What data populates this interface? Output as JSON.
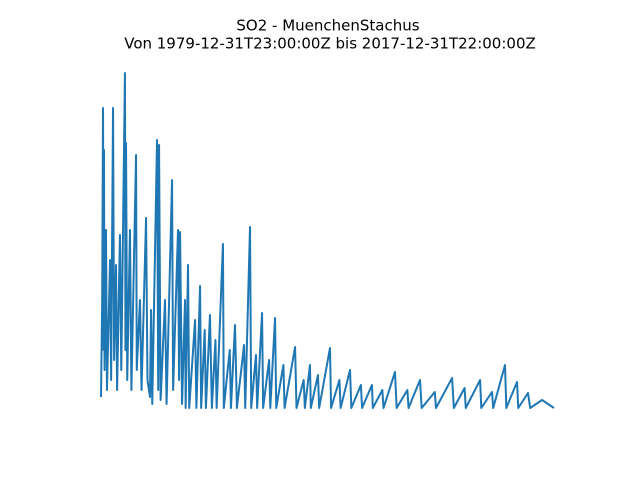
{
  "chart_data": {
    "type": "line",
    "title": "SO2 - MuenchenStachus",
    "subtitle": "Von 1979-12-31T23:00:00Z bis 2017-12-31T22:00:00Z",
    "x": [
      1980.0,
      1980.1,
      1980.17,
      1980.22,
      1980.25,
      1980.3,
      1980.42,
      1980.5,
      1980.76,
      1980.85,
      1981.01,
      1981.1,
      1981.26,
      1981.35,
      1981.59,
      1981.7,
      1982.01,
      1982.05,
      1982.1,
      1982.2,
      1982.43,
      1982.55,
      1982.94,
      1983.0,
      1983.27,
      1983.4,
      1983.78,
      1983.9,
      1984.11,
      1984.2,
      1984.3,
      1984.7,
      1984.8,
      1984.87,
      1985.0,
      1985.37,
      1985.5,
      1985.96,
      1986.05,
      1986.46,
      1986.55,
      1986.63,
      1986.8,
      1987.05,
      1987.1,
      1987.3,
      1987.4,
      1987.89,
      1988.0,
      1988.31,
      1988.4,
      1988.7,
      1988.8,
      1989.14,
      1989.3,
      1989.6,
      1989.7,
      1990.23,
      1990.3,
      1990.8,
      1990.9,
      1991.24,
      1991.4,
      1992.0,
      1992.1,
      1992.5,
      1992.6,
      1993.0,
      1993.1,
      1993.51,
      1993.6,
      1994.1,
      1994.2,
      1994.6,
      1994.7,
      1995.3,
      1995.4,
      1996.28,
      1996.4,
      1997.0,
      1997.1,
      1997.53,
      1997.6,
      1998.2,
      1998.3,
      1999.21,
      1999.3,
      2000.0,
      2000.1,
      2000.89,
      2001.0,
      2001.8,
      2001.9,
      2002.73,
      2002.8,
      2003.6,
      2003.7,
      2004.66,
      2004.8,
      2005.7,
      2005.8,
      2006.76,
      2006.9,
      2008.0,
      2008.1,
      2009.45,
      2009.6,
      2010.5,
      2010.6,
      2011.8,
      2011.9,
      2012.8,
      2012.9,
      2013.89,
      2014.0,
      2014.9,
      2015.0,
      2015.82,
      2016.0,
      2017.0,
      2018.0
    ],
    "series": [
      {
        "color": "#1f77b4",
        "values": [
          13,
          110,
          302,
          60,
          260,
          40,
          180,
          20,
          150,
          30,
          302,
          50,
          145,
          20,
          175,
          40,
          337,
          60,
          267,
          30,
          180,
          20,
          255,
          40,
          110,
          20,
          192,
          30,
          13,
          100,
          6,
          270,
          20,
          265,
          10,
          110,
          6,
          230,
          20,
          180,
          30,
          178,
          6,
          110,
          2,
          145,
          2,
          90,
          2,
          124,
          2,
          80,
          2,
          95,
          2,
          70,
          2,
          166,
          2,
          60,
          2,
          85,
          2,
          65,
          2,
          183,
          2,
          55,
          2,
          97,
          2,
          50,
          2,
          92,
          2,
          45,
          2,
          63,
          2,
          30,
          2,
          45,
          2,
          35,
          2,
          62,
          2,
          30,
          2,
          40,
          2,
          25,
          2,
          25,
          2,
          20,
          2,
          38,
          2,
          20,
          2,
          30,
          2,
          18,
          2,
          32,
          2,
          22,
          2,
          30,
          2,
          18,
          2,
          45,
          2,
          28,
          2,
          17,
          2,
          10,
          2
        ]
      }
    ],
    "xlim": [
      1980,
      2018
    ],
    "ylim": [
      0,
      350
    ]
  }
}
